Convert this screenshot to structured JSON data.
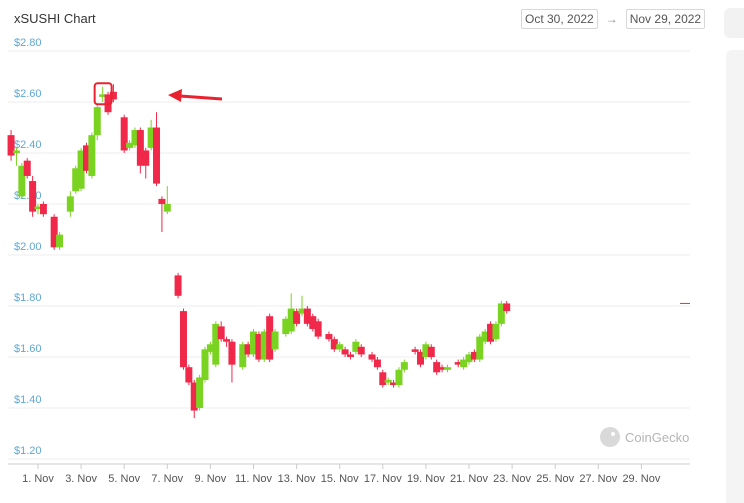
{
  "header": {
    "title": "xSUSHI Chart",
    "date_from": "Oct 30, 2022",
    "date_to": "Nov 29, 2022",
    "arrow": "→"
  },
  "watermark": {
    "text": "CoinGecko"
  },
  "colors": {
    "up": "#7bd321",
    "down": "#f0284a",
    "grid": "#eeeeee",
    "y_label": "#5fa8d3",
    "annotation": "#e8232f"
  },
  "chart_data": {
    "type": "candlestick",
    "title": "xSUSHI Chart",
    "ylim": [
      1.2,
      2.8
    ],
    "y_ticks": [
      "$1.20",
      "$1.40",
      "$1.60",
      "$1.80",
      "$2.00",
      "$2.20",
      "$2.40",
      "$2.60",
      "$2.80"
    ],
    "y_tick_values": [
      1.2,
      1.4,
      1.6,
      1.8,
      2.0,
      2.2,
      2.4,
      2.6,
      2.8
    ],
    "x_ticks": [
      "1. Nov",
      "3. Nov",
      "5. Nov",
      "7. Nov",
      "9. Nov",
      "11. Nov",
      "13. Nov",
      "15. Nov",
      "17. Nov",
      "19. Nov",
      "21. Nov",
      "23. Nov",
      "25. Nov",
      "27. Nov",
      "29. Nov"
    ],
    "x_tick_days": [
      1,
      3,
      5,
      7,
      9,
      11,
      13,
      15,
      17,
      19,
      21,
      23,
      25,
      27,
      29
    ],
    "x_range_days": [
      -0.55,
      30.1
    ],
    "candles": [
      {
        "day": -0.25,
        "open": 2.47,
        "close": 2.39,
        "high": 2.49,
        "low": 2.37
      },
      {
        "day": 0.0,
        "open": 2.4,
        "close": 2.41,
        "high": 2.42,
        "low": 2.35
      },
      {
        "day": 0.25,
        "open": 2.23,
        "close": 2.35,
        "high": 2.36,
        "low": 2.22
      },
      {
        "day": 0.5,
        "open": 2.37,
        "close": 2.31,
        "high": 2.38,
        "low": 2.3
      },
      {
        "day": 0.75,
        "open": 2.29,
        "close": 2.17,
        "high": 2.31,
        "low": 2.15
      },
      {
        "day": 1.0,
        "open": 2.18,
        "close": 2.19,
        "high": 2.2,
        "low": 2.16
      },
      {
        "day": 1.25,
        "open": 2.2,
        "close": 2.16,
        "high": 2.21,
        "low": 2.15
      },
      {
        "day": 1.75,
        "open": 2.15,
        "close": 2.03,
        "high": 2.16,
        "low": 2.02
      },
      {
        "day": 2.0,
        "open": 2.03,
        "close": 2.08,
        "high": 2.09,
        "low": 2.02
      },
      {
        "day": 2.5,
        "open": 2.17,
        "close": 2.23,
        "high": 2.25,
        "low": 2.15
      },
      {
        "day": 2.75,
        "open": 2.25,
        "close": 2.34,
        "high": 2.35,
        "low": 2.24
      },
      {
        "day": 3.0,
        "open": 2.26,
        "close": 2.41,
        "high": 2.42,
        "low": 2.25
      },
      {
        "day": 3.25,
        "open": 2.43,
        "close": 2.33,
        "high": 2.44,
        "low": 2.32
      },
      {
        "day": 3.5,
        "open": 2.31,
        "close": 2.47,
        "high": 2.48,
        "low": 2.3
      },
      {
        "day": 3.75,
        "open": 2.47,
        "close": 2.58,
        "high": 2.59,
        "low": 2.45
      },
      {
        "day": 4.0,
        "open": 2.62,
        "close": 2.63,
        "high": 2.66,
        "low": 2.6
      },
      {
        "day": 4.25,
        "open": 2.63,
        "close": 2.56,
        "high": 2.64,
        "low": 2.55
      },
      {
        "day": 4.5,
        "open": 2.64,
        "close": 2.61,
        "high": 2.67,
        "low": 2.6
      },
      {
        "day": 5.0,
        "open": 2.54,
        "close": 2.41,
        "high": 2.55,
        "low": 2.4
      },
      {
        "day": 5.25,
        "open": 2.42,
        "close": 2.44,
        "high": 2.45,
        "low": 2.41
      },
      {
        "day": 5.5,
        "open": 2.43,
        "close": 2.49,
        "high": 2.5,
        "low": 2.42
      },
      {
        "day": 5.75,
        "open": 2.49,
        "close": 2.35,
        "high": 2.5,
        "low": 2.32
      },
      {
        "day": 6.0,
        "open": 2.41,
        "close": 2.35,
        "high": 2.42,
        "low": 2.3
      },
      {
        "day": 6.25,
        "open": 2.42,
        "close": 2.5,
        "high": 2.53,
        "low": 2.41
      },
      {
        "day": 6.5,
        "open": 2.5,
        "close": 2.28,
        "high": 2.56,
        "low": 2.27
      },
      {
        "day": 6.75,
        "open": 2.22,
        "close": 2.2,
        "high": 2.23,
        "low": 2.09
      },
      {
        "day": 7.0,
        "open": 2.17,
        "close": 2.2,
        "high": 2.27,
        "low": 2.16
      },
      {
        "day": 7.5,
        "open": 1.92,
        "close": 1.84,
        "high": 1.93,
        "low": 1.83
      },
      {
        "day": 7.75,
        "open": 1.78,
        "close": 1.56,
        "high": 1.79,
        "low": 1.55
      },
      {
        "day": 8.0,
        "open": 1.56,
        "close": 1.5,
        "high": 1.57,
        "low": 1.49
      },
      {
        "day": 8.25,
        "open": 1.5,
        "close": 1.39,
        "high": 1.51,
        "low": 1.36
      },
      {
        "day": 8.5,
        "open": 1.4,
        "close": 1.52,
        "high": 1.53,
        "low": 1.39
      },
      {
        "day": 8.75,
        "open": 1.51,
        "close": 1.63,
        "high": 1.64,
        "low": 1.5
      },
      {
        "day": 9.0,
        "open": 1.62,
        "close": 1.65,
        "high": 1.66,
        "low": 1.61
      },
      {
        "day": 9.25,
        "open": 1.57,
        "close": 1.73,
        "high": 1.74,
        "low": 1.56
      },
      {
        "day": 9.5,
        "open": 1.72,
        "close": 1.67,
        "high": 1.74,
        "low": 1.66
      },
      {
        "day": 9.75,
        "open": 1.67,
        "close": 1.66,
        "high": 1.68,
        "low": 1.64
      },
      {
        "day": 10.0,
        "open": 1.66,
        "close": 1.57,
        "high": 1.67,
        "low": 1.5
      },
      {
        "day": 10.5,
        "open": 1.56,
        "close": 1.65,
        "high": 1.66,
        "low": 1.55
      },
      {
        "day": 10.75,
        "open": 1.65,
        "close": 1.61,
        "high": 1.66,
        "low": 1.6
      },
      {
        "day": 11.0,
        "open": 1.61,
        "close": 1.7,
        "high": 1.71,
        "low": 1.6
      },
      {
        "day": 11.25,
        "open": 1.69,
        "close": 1.59,
        "high": 1.7,
        "low": 1.58
      },
      {
        "day": 11.5,
        "open": 1.59,
        "close": 1.7,
        "high": 1.71,
        "low": 1.58
      },
      {
        "day": 11.75,
        "open": 1.76,
        "close": 1.59,
        "high": 1.77,
        "low": 1.58
      },
      {
        "day": 12.0,
        "open": 1.63,
        "close": 1.7,
        "high": 1.71,
        "low": 1.62
      },
      {
        "day": 12.5,
        "open": 1.69,
        "close": 1.75,
        "high": 1.76,
        "low": 1.68
      },
      {
        "day": 12.75,
        "open": 1.7,
        "close": 1.79,
        "high": 1.85,
        "low": 1.69
      },
      {
        "day": 13.0,
        "open": 1.78,
        "close": 1.73,
        "high": 1.79,
        "low": 1.72
      },
      {
        "day": 13.25,
        "open": 1.77,
        "close": 1.79,
        "high": 1.84,
        "low": 1.76
      },
      {
        "day": 13.5,
        "open": 1.79,
        "close": 1.73,
        "high": 1.8,
        "low": 1.72
      },
      {
        "day": 13.75,
        "open": 1.76,
        "close": 1.71,
        "high": 1.77,
        "low": 1.7
      },
      {
        "day": 14.0,
        "open": 1.74,
        "close": 1.68,
        "high": 1.75,
        "low": 1.67
      },
      {
        "day": 14.5,
        "open": 1.69,
        "close": 1.67,
        "high": 1.7,
        "low": 1.66
      },
      {
        "day": 14.75,
        "open": 1.67,
        "close": 1.63,
        "high": 1.68,
        "low": 1.62
      },
      {
        "day": 15.0,
        "open": 1.63,
        "close": 1.65,
        "high": 1.66,
        "low": 1.62
      },
      {
        "day": 15.25,
        "open": 1.63,
        "close": 1.61,
        "high": 1.64,
        "low": 1.6
      },
      {
        "day": 15.5,
        "open": 1.61,
        "close": 1.6,
        "high": 1.62,
        "low": 1.59
      },
      {
        "day": 15.75,
        "open": 1.62,
        "close": 1.66,
        "high": 1.67,
        "low": 1.61
      },
      {
        "day": 16.0,
        "open": 1.64,
        "close": 1.61,
        "high": 1.65,
        "low": 1.6
      },
      {
        "day": 16.5,
        "open": 1.61,
        "close": 1.59,
        "high": 1.62,
        "low": 1.58
      },
      {
        "day": 16.75,
        "open": 1.59,
        "close": 1.56,
        "high": 1.6,
        "low": 1.55
      },
      {
        "day": 17.0,
        "open": 1.54,
        "close": 1.49,
        "high": 1.55,
        "low": 1.48
      },
      {
        "day": 17.25,
        "open": 1.5,
        "close": 1.51,
        "high": 1.52,
        "low": 1.49
      },
      {
        "day": 17.5,
        "open": 1.5,
        "close": 1.49,
        "high": 1.51,
        "low": 1.48
      },
      {
        "day": 17.75,
        "open": 1.49,
        "close": 1.55,
        "high": 1.56,
        "low": 1.48
      },
      {
        "day": 18.0,
        "open": 1.55,
        "close": 1.58,
        "high": 1.59,
        "low": 1.54
      },
      {
        "day": 18.5,
        "open": 1.63,
        "close": 1.62,
        "high": 1.64,
        "low": 1.61
      },
      {
        "day": 18.75,
        "open": 1.62,
        "close": 1.57,
        "high": 1.63,
        "low": 1.56
      },
      {
        "day": 19.0,
        "open": 1.6,
        "close": 1.65,
        "high": 1.66,
        "low": 1.59
      },
      {
        "day": 19.25,
        "open": 1.64,
        "close": 1.6,
        "high": 1.65,
        "low": 1.59
      },
      {
        "day": 19.5,
        "open": 1.58,
        "close": 1.54,
        "high": 1.59,
        "low": 1.53
      },
      {
        "day": 19.75,
        "open": 1.56,
        "close": 1.55,
        "high": 1.57,
        "low": 1.54
      },
      {
        "day": 20.0,
        "open": 1.55,
        "close": 1.56,
        "high": 1.57,
        "low": 1.54
      },
      {
        "day": 20.5,
        "open": 1.58,
        "close": 1.57,
        "high": 1.59,
        "low": 1.56
      },
      {
        "day": 20.75,
        "open": 1.56,
        "close": 1.59,
        "high": 1.6,
        "low": 1.55
      },
      {
        "day": 21.0,
        "open": 1.58,
        "close": 1.61,
        "high": 1.62,
        "low": 1.57
      },
      {
        "day": 21.25,
        "open": 1.62,
        "close": 1.59,
        "high": 1.63,
        "low": 1.58
      },
      {
        "day": 21.5,
        "open": 1.59,
        "close": 1.68,
        "high": 1.69,
        "low": 1.58
      },
      {
        "day": 21.75,
        "open": 1.66,
        "close": 1.7,
        "high": 1.71,
        "low": 1.65
      },
      {
        "day": 22.0,
        "open": 1.73,
        "close": 1.66,
        "high": 1.74,
        "low": 1.65
      },
      {
        "day": 22.25,
        "open": 1.67,
        "close": 1.73,
        "high": 1.74,
        "low": 1.66
      },
      {
        "day": 22.5,
        "open": 1.73,
        "close": 1.81,
        "high": 1.82,
        "low": 1.72
      },
      {
        "day": 22.75,
        "open": 1.81,
        "close": 1.78,
        "high": 1.82,
        "low": 1.77
      }
    ],
    "last_price_line": 1.81
  },
  "annotation": {
    "note": ""
  }
}
